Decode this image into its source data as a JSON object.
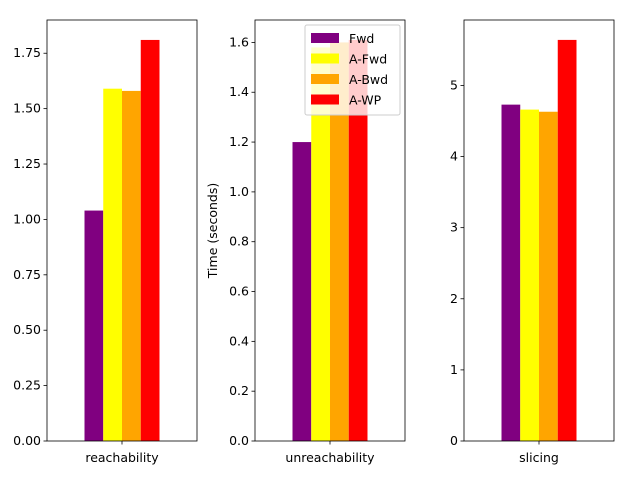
{
  "chart_data": [
    {
      "type": "bar",
      "categories": [
        "reachability"
      ],
      "ylabel": "",
      "ylim": [
        0,
        1.9
      ],
      "yticks": [
        0.0,
        0.25,
        0.5,
        0.75,
        1.0,
        1.25,
        1.5,
        1.75
      ],
      "ytick_labels": [
        "0.00",
        "0.25",
        "0.50",
        "0.75",
        "1.00",
        "1.25",
        "1.50",
        "1.75"
      ],
      "series": [
        {
          "name": "Fwd",
          "values": [
            1.04
          ]
        },
        {
          "name": "A-Fwd",
          "values": [
            1.59
          ]
        },
        {
          "name": "A-Bwd",
          "values": [
            1.58
          ]
        },
        {
          "name": "A-WP",
          "values": [
            1.81
          ]
        }
      ]
    },
    {
      "type": "bar",
      "categories": [
        "unreachability"
      ],
      "ylabel": "Time (seconds)",
      "ylim": [
        0,
        1.69
      ],
      "yticks": [
        0.0,
        0.2,
        0.4,
        0.6,
        0.8,
        1.0,
        1.2,
        1.4,
        1.6
      ],
      "ytick_labels": [
        "0.0",
        "0.2",
        "0.4",
        "0.6",
        "0.8",
        "1.0",
        "1.2",
        "1.4",
        "1.6"
      ],
      "legend": "top-right",
      "series": [
        {
          "name": "Fwd",
          "values": [
            1.2
          ]
        },
        {
          "name": "A-Fwd",
          "values": [
            1.58
          ]
        },
        {
          "name": "A-Bwd",
          "values": [
            1.6
          ]
        },
        {
          "name": "A-WP",
          "values": [
            1.61
          ]
        }
      ]
    },
    {
      "type": "bar",
      "categories": [
        "slicing"
      ],
      "ylabel": "",
      "ylim": [
        0,
        5.92
      ],
      "yticks": [
        0,
        1,
        2,
        3,
        4,
        5
      ],
      "ytick_labels": [
        "0",
        "1",
        "2",
        "3",
        "4",
        "5"
      ],
      "series": [
        {
          "name": "Fwd",
          "values": [
            4.73
          ]
        },
        {
          "name": "A-Fwd",
          "values": [
            4.66
          ]
        },
        {
          "name": "A-Bwd",
          "values": [
            4.63
          ]
        },
        {
          "name": "A-WP",
          "values": [
            5.64
          ]
        }
      ]
    }
  ],
  "legend": [
    {
      "label": "Fwd",
      "color": "#800080"
    },
    {
      "label": "A-Fwd",
      "color": "#ffff00"
    },
    {
      "label": "A-Bwd",
      "color": "#ffa500"
    },
    {
      "label": "A-WP",
      "color": "#ff0000"
    }
  ]
}
